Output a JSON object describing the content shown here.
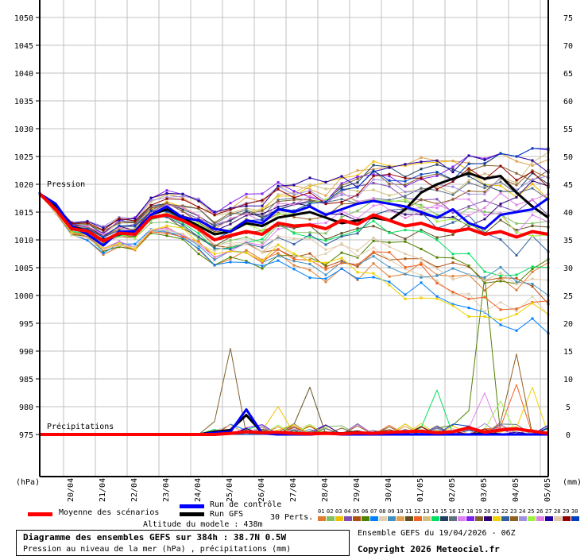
{
  "chart_data": {
    "type": "line",
    "title": "Diagramme des ensembles GEFS sur 384h : 38.7N 0.5W",
    "subtitle": "Pression au niveau de la mer (hPa) , précipitations (mm)",
    "run_info": "Ensemble GEFS du 19/04/2026 - 06Z",
    "copyright": "Copyright 2026 Meteociel.fr",
    "altitude": "Altitude du modele : 438m",
    "left_axis": {
      "label": "(hPa)",
      "ylim": [
        975,
        1050
      ],
      "ticks": [
        "1050",
        "1045",
        "1040",
        "1035",
        "1030",
        "1025",
        "1020",
        "1015",
        "1010",
        "1005",
        "1000",
        "995",
        "990",
        "985",
        "980",
        "975"
      ]
    },
    "right_axis": {
      "label": "(mm)",
      "ylim": [
        0,
        75
      ],
      "ticks": [
        "75",
        "70",
        "65",
        "60",
        "55",
        "50",
        "45",
        "40",
        "35",
        "30",
        "25",
        "20",
        "15",
        "10",
        "5",
        "0"
      ]
    },
    "x_tick_labels": [
      "20/04",
      "21/04",
      "22/04",
      "23/04",
      "24/04",
      "25/04",
      "26/04",
      "27/04",
      "28/04",
      "29/04",
      "30/04",
      "01/05",
      "02/05",
      "03/05",
      "04/05",
      "05/05"
    ],
    "time_step_hours": 12,
    "annotations": {
      "pressure": "Pression",
      "precip": "Précipitations"
    },
    "grid": true,
    "series": [
      {
        "name": "Moyenne des scénarios",
        "color": "#ff0000",
        "pressure": [
          1018.3,
          1015.5,
          1012.0,
          1011.6,
          1009.8,
          1011.2,
          1011.0,
          1014.0,
          1014.5,
          1013.5,
          1012.0,
          1010.0,
          1010.8,
          1011.5,
          1011.0,
          1013.0,
          1012.5,
          1012.7,
          1012.0,
          1013.5,
          1012.8,
          1014.5,
          1013.5,
          1012.5,
          1013.0,
          1012.0,
          1011.5,
          1012.0,
          1011.0,
          1011.5,
          1010.5,
          1011.5,
          1011.0
        ],
        "precip": [
          0,
          0,
          0,
          0,
          0,
          0,
          0,
          0,
          0,
          0,
          0,
          0,
          0.2,
          0.5,
          0.3,
          0.4,
          0.2,
          0.1,
          0.2,
          0.1,
          0.3,
          0.2,
          0.4,
          0.5,
          0.6,
          0.3,
          0.5,
          1.2,
          0.4,
          0.8,
          1.0,
          0.6,
          0.2
        ]
      },
      {
        "name": "Run de contrôle",
        "color": "#0000ff",
        "pressure": [
          1018.3,
          1016.5,
          1012.5,
          1011.0,
          1009.0,
          1011.5,
          1011.5,
          1014.5,
          1016.0,
          1014.0,
          1013.5,
          1012.0,
          1011.5,
          1013.5,
          1013.0,
          1015.5,
          1015.0,
          1016.0,
          1014.5,
          1015.5,
          1016.5,
          1017.0,
          1016.5,
          1016.0,
          1015.0,
          1014.0,
          1015.5,
          1013.0,
          1012.0,
          1014.5,
          1015.0,
          1015.5,
          1017.5
        ],
        "precip": [
          0,
          0,
          0,
          0,
          0,
          0,
          0,
          0,
          0,
          0,
          0,
          0.3,
          0.5,
          4.5,
          0.2,
          0,
          0,
          0,
          0.2,
          0,
          0,
          0,
          0,
          0,
          0,
          0,
          0,
          0,
          0,
          0,
          0,
          0,
          0
        ]
      },
      {
        "name": "Run GFS",
        "color": "#000000",
        "pressure": [
          1018.3,
          1016.0,
          1012.5,
          1011.5,
          1010.0,
          1011.0,
          1011.5,
          1014.5,
          1015.5,
          1014.0,
          1012.5,
          1011.0,
          1011.5,
          1013.0,
          1012.5,
          1014.0,
          1014.5,
          1015.0,
          1014.0,
          1013.0,
          1013.5,
          1014.0,
          1013.5,
          1015.5,
          1018.5,
          1020.0,
          1021.0,
          1022.0,
          1021.0,
          1021.5,
          1018.5,
          1016.0,
          1014.0
        ],
        "precip": [
          0,
          0,
          0,
          0,
          0,
          0,
          0,
          0,
          0,
          0,
          0,
          0.5,
          0.8,
          3.5,
          0.3,
          0,
          0,
          0,
          0.3,
          0.2,
          0.5,
          0,
          0,
          0,
          0,
          0,
          0,
          0,
          0.2,
          0,
          0,
          0,
          0
        ]
      }
    ],
    "perturbations": {
      "count_label": "30 Perts.",
      "ids": [
        "01",
        "02",
        "03",
        "04",
        "05",
        "06",
        "07",
        "08",
        "09",
        "10",
        "11",
        "12",
        "13",
        "14",
        "15",
        "16",
        "17",
        "18",
        "19",
        "20",
        "21",
        "22",
        "23",
        "24",
        "25",
        "26",
        "27",
        "28",
        "29",
        "30"
      ],
      "colors": [
        "#e07b30",
        "#80c060",
        "#f0c000",
        "#8050b0",
        "#b05010",
        "#508000",
        "#0080ff",
        "#e0d0b0",
        "#4090c0",
        "#e0a050",
        "#605020",
        "#f06020",
        "#d0c080",
        "#00e060",
        "#204060",
        "#607080",
        "#e080f0",
        "#8020f0",
        "#806030",
        "#300070",
        "#f0d000",
        "#3060a0",
        "#906020",
        "#a090e0",
        "#a0f040",
        "#e080e0",
        "#2000a0",
        "#e0c8a8",
        "#900000",
        "#0040c0"
      ],
      "precip_peaks": [
        {
          "member": 19,
          "step": 12,
          "mm": 15.5
        },
        {
          "member": 11,
          "step": 17,
          "mm": 8.5
        },
        {
          "member": 6,
          "step": 28,
          "mm": 28.5
        },
        {
          "member": 23,
          "step": 30,
          "mm": 14.5
        },
        {
          "member": 21,
          "step": 31,
          "mm": 8.5
        },
        {
          "member": 12,
          "step": 30,
          "mm": 9.0
        },
        {
          "member": 14,
          "step": 25,
          "mm": 8.0
        },
        {
          "member": 3,
          "step": 15,
          "mm": 5.0
        },
        {
          "member": 17,
          "step": 28,
          "mm": 7.5
        },
        {
          "member": 25,
          "step": 29,
          "mm": 6.0
        }
      ]
    }
  },
  "legend": {
    "mean": "Moyenne des scénarios",
    "control": "Run de contrôle",
    "gfs": "Run GFS"
  }
}
